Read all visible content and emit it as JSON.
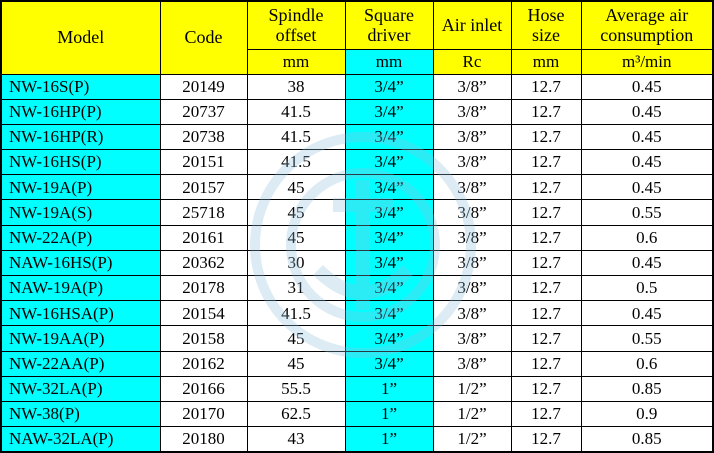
{
  "table": {
    "headers": [
      {
        "key": "model",
        "label": "Model",
        "unit": null
      },
      {
        "key": "code",
        "label": "Code",
        "unit": null
      },
      {
        "key": "spindle-offset",
        "label": "Spindle offset",
        "unit": "mm"
      },
      {
        "key": "square-driver",
        "label": "Square driver",
        "unit": "mm"
      },
      {
        "key": "air-inlet",
        "label": "Air inlet",
        "unit": "Rc"
      },
      {
        "key": "hose-size",
        "label": "Hose size",
        "unit": "mm"
      },
      {
        "key": "avg-air-consumption",
        "label": "Average air consumption",
        "unit": "m³/min"
      }
    ],
    "rows": [
      [
        "NW-16S(P)",
        "20149",
        "38",
        "3/4”",
        "3/8”",
        "12.7",
        "0.45"
      ],
      [
        "NW-16HP(P)",
        "20737",
        "41.5",
        "3/4”",
        "3/8”",
        "12.7",
        "0.45"
      ],
      [
        "NW-16HP(R)",
        "20738",
        "41.5",
        "3/4”",
        "3/8”",
        "12.7",
        "0.45"
      ],
      [
        "NW-16HS(P)",
        "20151",
        "41.5",
        "3/4”",
        "3/8”",
        "12.7",
        "0.45"
      ],
      [
        "NW-19A(P)",
        "20157",
        "45",
        "3/4”",
        "3/8”",
        "12.7",
        "0.45"
      ],
      [
        "NW-19A(S)",
        "25718",
        "45",
        "3/4”",
        "3/8”",
        "12.7",
        "0.55"
      ],
      [
        "NW-22A(P)",
        "20161",
        "45",
        "3/4”",
        "3/8”",
        "12.7",
        "0.6"
      ],
      [
        "NAW-16HS(P)",
        "20362",
        "30",
        "3/4”",
        "3/8”",
        "12.7",
        "0.45"
      ],
      [
        "NAW-19A(P)",
        "20178",
        "31",
        "3/4”",
        "3/8”",
        "12.7",
        "0.5"
      ],
      [
        "NW-16HSA(P)",
        "20154",
        "41.5",
        "3/4”",
        "3/8”",
        "12.7",
        "0.45"
      ],
      [
        "NW-19AA(P)",
        "20158",
        "45",
        "3/4”",
        "3/8”",
        "12.7",
        "0.55"
      ],
      [
        "NW-22AA(P)",
        "20162",
        "45",
        "3/4”",
        "3/8”",
        "12.7",
        "0.6"
      ],
      [
        "NW-32LA(P)",
        "20166",
        "55.5",
        "1”",
        "1/2”",
        "12.7",
        "0.85"
      ],
      [
        "NW-38(P)",
        "20170",
        "62.5",
        "1”",
        "1/2”",
        "12.7",
        "0.9"
      ],
      [
        "NAW-32LA(P)",
        "20180",
        "43",
        "1”",
        "1/2”",
        "12.7",
        "0.85"
      ]
    ]
  },
  "colors": {
    "header_bg": "#ffff00",
    "highlight_bg": "#00ffff",
    "border": "#000000",
    "watermark": "#8fbede"
  }
}
